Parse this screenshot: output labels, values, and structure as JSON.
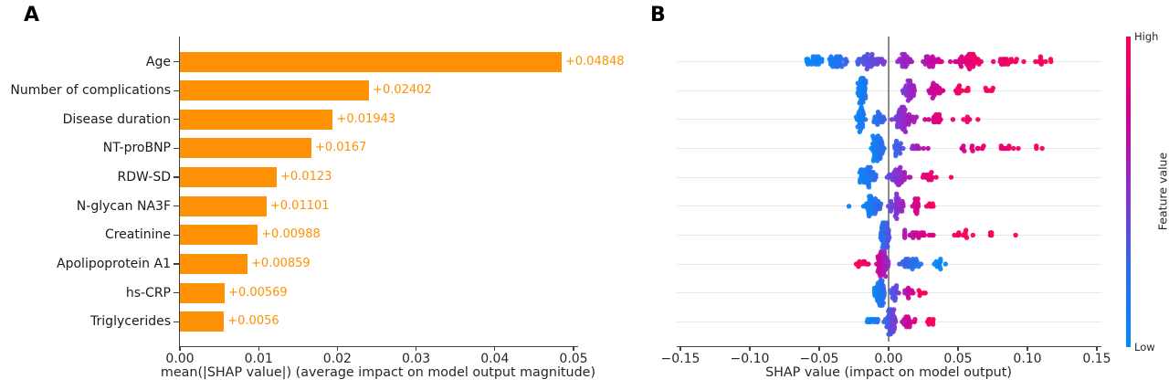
{
  "panel_a": {
    "panel_label": "A",
    "chart_data": {
      "type": "bar",
      "orientation": "horizontal",
      "title": "",
      "xlabel": "mean(|SHAP value|) (average impact on model output magnitude)",
      "ylabel": "",
      "xlim": [
        0,
        0.0505
      ],
      "grid": false,
      "bar_color": "#ff9104",
      "categories": [
        "Age",
        "Number of complications",
        "Disease duration",
        "NT-proBNP",
        "RDW-SD",
        "N-glycan NA3F",
        "Creatinine",
        "Apolipoprotein A1",
        "hs-CRP",
        "Triglycerides"
      ],
      "values": [
        0.04848,
        0.02402,
        0.01943,
        0.0167,
        0.0123,
        0.01101,
        0.00988,
        0.00859,
        0.00569,
        0.0056
      ],
      "bar_labels": [
        "+0.04848",
        "+0.02402",
        "+0.01943",
        "+0.0167",
        "+0.0123",
        "+0.01101",
        "+0.00988",
        "+0.00859",
        "+0.00569",
        "+0.0056"
      ],
      "x_tick_labels": [
        "0.00",
        "0.01",
        "0.02",
        "0.03",
        "0.04",
        "0.05"
      ],
      "x_tick_values": [
        0,
        0.01,
        0.02,
        0.03,
        0.04,
        0.05
      ]
    }
  },
  "panel_b": {
    "panel_label": "B",
    "chart_data": {
      "type": "scatter",
      "subtype": "beeswarm",
      "title": "",
      "xlabel": "SHAP value (impact on model output)",
      "ylabel": "",
      "xlim": [
        -0.155,
        0.155
      ],
      "grid": true,
      "zero_line": true,
      "x_tick_labels": [
        "−0.15",
        "−0.10",
        "−0.05",
        "0.00",
        "0.05",
        "0.10",
        "0.15"
      ],
      "x_tick_values": [
        -0.15,
        -0.1,
        -0.05,
        0.0,
        0.05,
        0.1,
        0.15
      ],
      "colormap_stops": [
        "#008bfb",
        "#2f6ae9",
        "#8830d0",
        "#d1008f",
        "#ff0051"
      ],
      "colorbar": {
        "high_label": "High",
        "low_label": "Low",
        "title": "Feature value",
        "color_high": "#ff0051",
        "color_low": "#008bfb"
      },
      "rows": [
        {
          "feature": "Age",
          "clusters": [
            {
              "x0": -0.062,
              "x1": -0.044,
              "n": 22,
              "t0": 0,
              "t1": 0.15
            },
            {
              "x0": -0.048,
              "x1": -0.026,
              "n": 30,
              "t0": 0.05,
              "t1": 0.3
            },
            {
              "x0": -0.028,
              "x1": 0.002,
              "n": 40,
              "t0": 0.25,
              "t1": 0.5
            },
            {
              "x0": 0.003,
              "x1": 0.02,
              "n": 24,
              "t0": 0.5,
              "t1": 0.65
            },
            {
              "x0": 0.02,
              "x1": 0.04,
              "n": 24,
              "t0": 0.55,
              "t1": 0.8
            },
            {
              "x0": 0.042,
              "x1": 0.072,
              "n": 45,
              "t0": 0.7,
              "t1": 1
            },
            {
              "x0": 0.072,
              "x1": 0.1,
              "n": 20,
              "t0": 0.85,
              "t1": 1
            },
            {
              "x0": 0.1,
              "x1": 0.123,
              "n": 10,
              "t0": 0.9,
              "t1": 1
            }
          ]
        },
        {
          "feature": "Number of complications",
          "clusters": [
            {
              "x0": -0.024,
              "x1": -0.015,
              "n": 48,
              "t0": 0,
              "t1": 0.2
            },
            {
              "x0": 0.009,
              "x1": 0.021,
              "n": 32,
              "t0": 0.45,
              "t1": 0.62
            },
            {
              "x0": 0.023,
              "x1": 0.045,
              "n": 22,
              "t0": 0.62,
              "t1": 0.85
            },
            {
              "x0": 0.045,
              "x1": 0.063,
              "n": 12,
              "t0": 0.85,
              "t1": 1
            },
            {
              "x0": 0.065,
              "x1": 0.079,
              "n": 6,
              "t0": 0.92,
              "t1": 1
            }
          ]
        },
        {
          "feature": "Disease duration",
          "clusters": [
            {
              "x0": -0.026,
              "x1": -0.014,
              "n": 30,
              "t0": 0,
              "t1": 0.22
            },
            {
              "x0": -0.014,
              "x1": -0.001,
              "n": 20,
              "t0": 0.12,
              "t1": 0.35
            },
            {
              "x0": 0.0,
              "x1": 0.022,
              "n": 55,
              "t0": 0.4,
              "t1": 0.68
            },
            {
              "x0": 0.023,
              "x1": 0.048,
              "n": 18,
              "t0": 0.7,
              "t1": 0.95
            },
            {
              "x0": 0.05,
              "x1": 0.067,
              "n": 6,
              "t0": 0.9,
              "t1": 1
            }
          ]
        },
        {
          "feature": "NT-proBNP",
          "clusters": [
            {
              "x0": -0.014,
              "x1": -0.002,
              "n": 52,
              "t0": 0,
              "t1": 0.28
            },
            {
              "x0": -0.001,
              "x1": 0.012,
              "n": 16,
              "t0": 0.15,
              "t1": 0.42
            },
            {
              "x0": 0.012,
              "x1": 0.03,
              "n": 10,
              "t0": 0.5,
              "t1": 0.7
            },
            {
              "x0": 0.047,
              "x1": 0.075,
              "n": 12,
              "t0": 0.7,
              "t1": 0.95
            },
            {
              "x0": 0.075,
              "x1": 0.098,
              "n": 9,
              "t0": 0.85,
              "t1": 1
            },
            {
              "x0": 0.103,
              "x1": 0.115,
              "n": 3,
              "t0": 0.95,
              "t1": 1
            }
          ]
        },
        {
          "feature": "RDW-SD",
          "clusters": [
            {
              "x0": -0.026,
              "x1": -0.005,
              "n": 45,
              "t0": 0,
              "t1": 0.3
            },
            {
              "x0": -0.004,
              "x1": 0.019,
              "n": 42,
              "t0": 0.35,
              "t1": 0.7
            },
            {
              "x0": 0.019,
              "x1": 0.038,
              "n": 14,
              "t0": 0.75,
              "t1": 1
            },
            {
              "x0": 0.044,
              "x1": 0.047,
              "n": 1,
              "t0": 1,
              "t1": 1
            }
          ]
        },
        {
          "feature": "N-glycan NA3F",
          "clusters": [
            {
              "x0": -0.029,
              "x1": -0.028,
              "n": 1,
              "t0": 0.05,
              "t1": 0.1
            },
            {
              "x0": -0.02,
              "x1": -0.003,
              "n": 40,
              "t0": 0,
              "t1": 0.3
            },
            {
              "x0": -0.002,
              "x1": 0.014,
              "n": 34,
              "t0": 0.35,
              "t1": 0.65
            },
            {
              "x0": 0.014,
              "x1": 0.026,
              "n": 14,
              "t0": 0.7,
              "t1": 0.9
            },
            {
              "x0": 0.026,
              "x1": 0.034,
              "n": 6,
              "t0": 0.9,
              "t1": 1
            }
          ]
        },
        {
          "feature": "Creatinine",
          "clusters": [
            {
              "x0": -0.008,
              "x1": 0.002,
              "n": 55,
              "t0": 0.05,
              "t1": 0.45
            },
            {
              "x0": 0.008,
              "x1": 0.035,
              "n": 22,
              "t0": 0.6,
              "t1": 0.85
            },
            {
              "x0": 0.038,
              "x1": 0.065,
              "n": 10,
              "t0": 0.88,
              "t1": 1
            },
            {
              "x0": 0.07,
              "x1": 0.081,
              "n": 4,
              "t0": 0.95,
              "t1": 1
            },
            {
              "x0": 0.09,
              "x1": 0.094,
              "n": 1,
              "t0": 1,
              "t1": 1
            }
          ]
        },
        {
          "feature": "Apolipoprotein A1",
          "clusters": [
            {
              "x0": -0.025,
              "x1": -0.013,
              "n": 10,
              "t0": 1,
              "t1": 0.85
            },
            {
              "x0": -0.011,
              "x1": 0.002,
              "n": 50,
              "t0": 0.82,
              "t1": 0.45
            },
            {
              "x0": 0.003,
              "x1": 0.03,
              "n": 30,
              "t0": 0.38,
              "t1": 0.1
            },
            {
              "x0": 0.03,
              "x1": 0.043,
              "n": 10,
              "t0": 0.08,
              "t1": 0
            }
          ]
        },
        {
          "feature": "hs-CRP",
          "clusters": [
            {
              "x0": -0.012,
              "x1": -0.001,
              "n": 45,
              "t0": 0,
              "t1": 0.3
            },
            {
              "x0": 0.0,
              "x1": 0.008,
              "n": 15,
              "t0": 0.25,
              "t1": 0.5
            },
            {
              "x0": 0.008,
              "x1": 0.02,
              "n": 12,
              "t0": 0.55,
              "t1": 0.85
            },
            {
              "x0": 0.02,
              "x1": 0.028,
              "n": 6,
              "t0": 0.9,
              "t1": 1
            }
          ]
        },
        {
          "feature": "Triglycerides",
          "clusters": [
            {
              "x0": -0.018,
              "x1": -0.005,
              "n": 12,
              "t0": 0,
              "t1": 0.2
            },
            {
              "x0": -0.004,
              "x1": 0.007,
              "n": 45,
              "t0": 0.2,
              "t1": 0.55
            },
            {
              "x0": 0.007,
              "x1": 0.02,
              "n": 17,
              "t0": 0.6,
              "t1": 0.85
            },
            {
              "x0": 0.024,
              "x1": 0.037,
              "n": 8,
              "t0": 0.9,
              "t1": 1
            }
          ]
        }
      ]
    }
  }
}
